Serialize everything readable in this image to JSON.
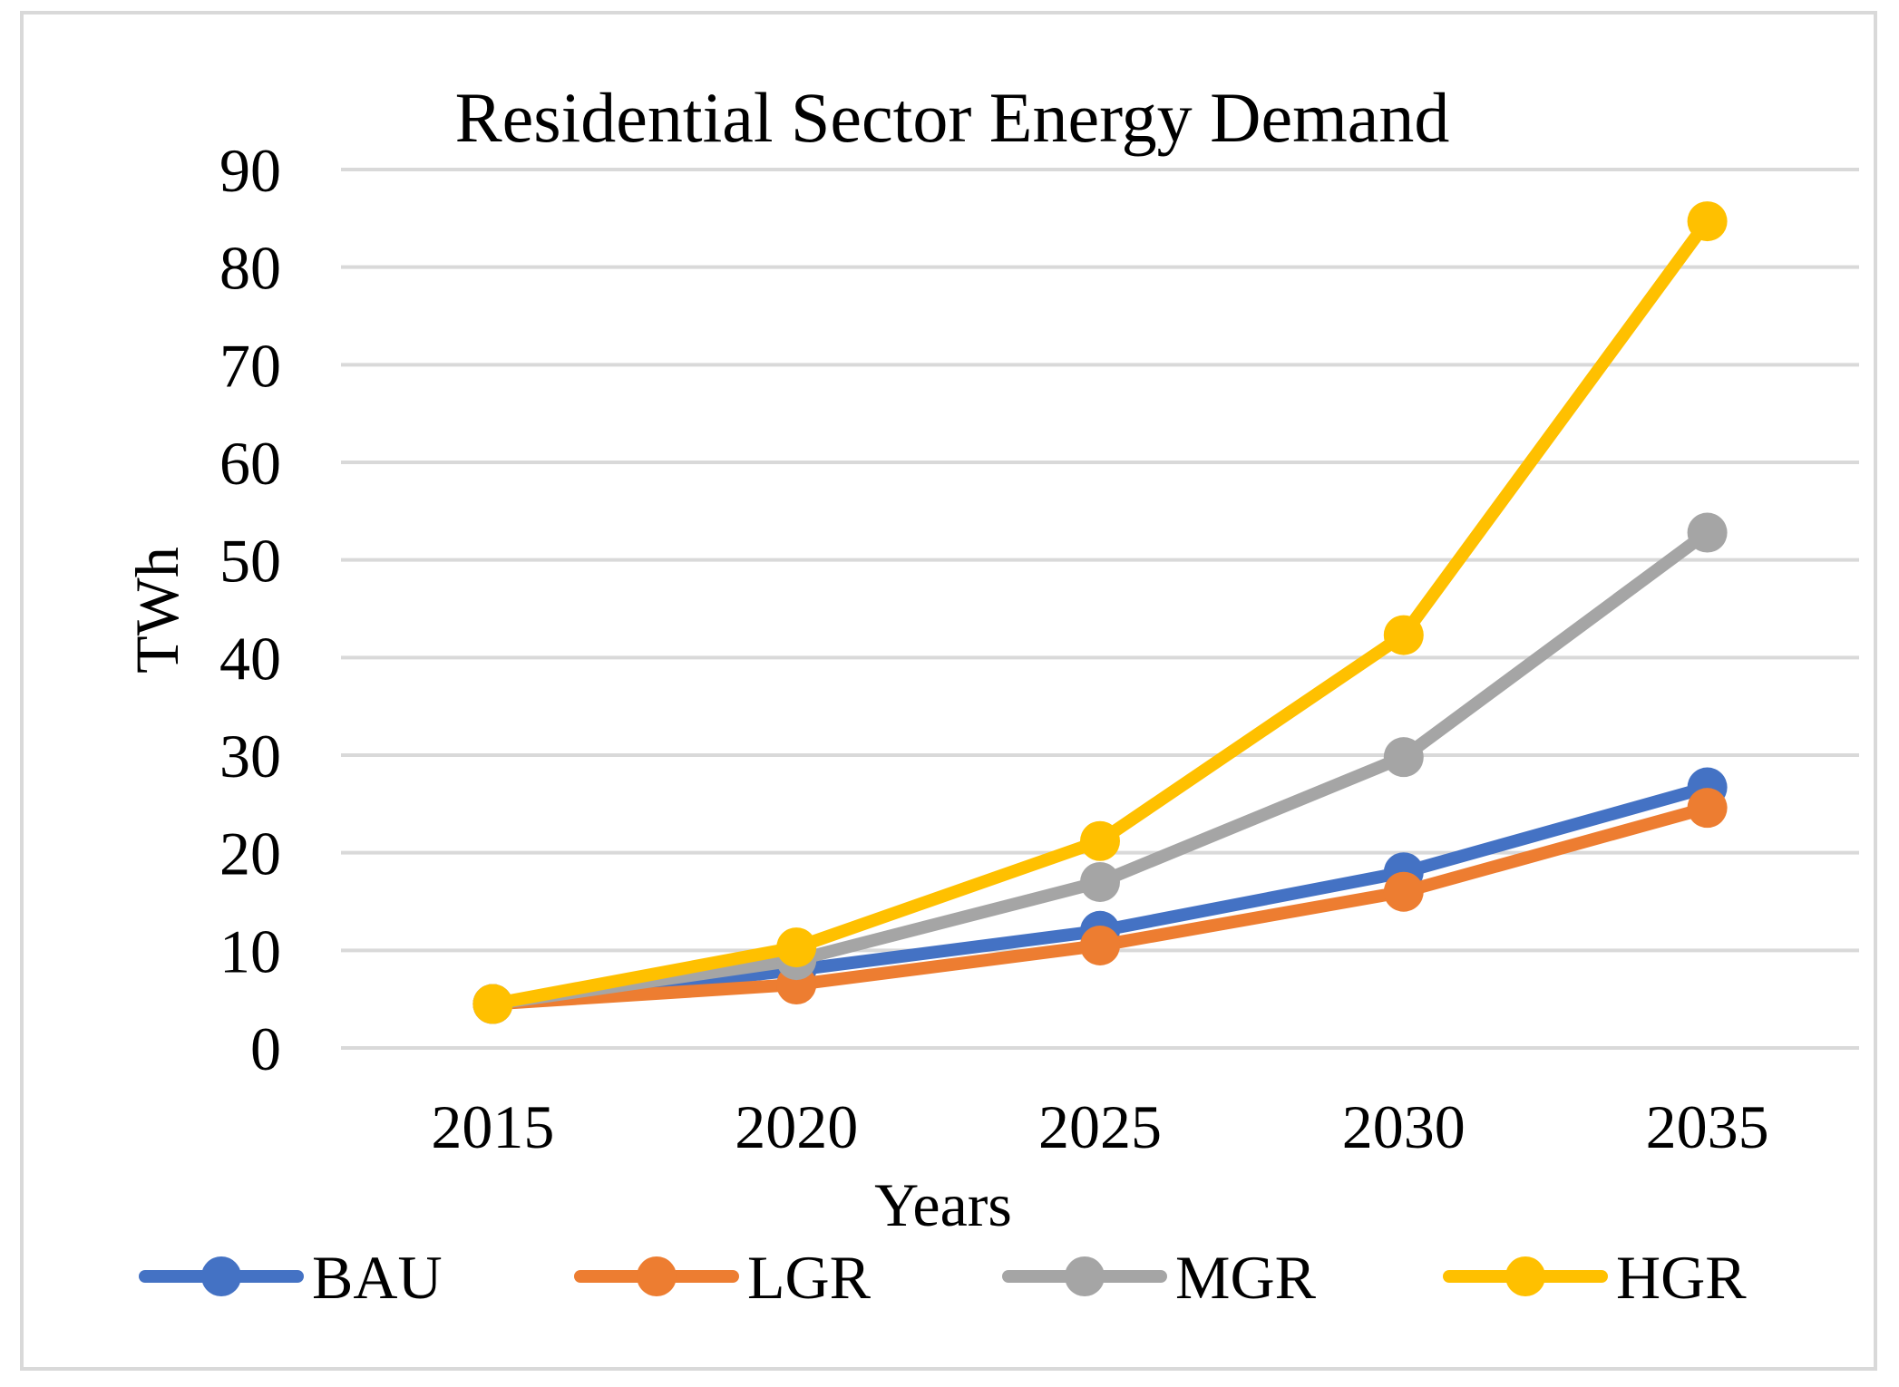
{
  "chart_data": {
    "type": "line",
    "title": "Residential Sector Energy Demand",
    "xlabel": "Years",
    "ylabel": "TWh",
    "categories": [
      "2015",
      "2020",
      "2025",
      "2030",
      "2035"
    ],
    "ylim": [
      0,
      90
    ],
    "yticks": [
      "0",
      "10",
      "20",
      "30",
      "40",
      "50",
      "60",
      "70",
      "80",
      "90"
    ],
    "grid": true,
    "legend_position": "bottom",
    "series": [
      {
        "name": "BAU",
        "color": "#4472c4",
        "values": [
          4.5,
          8.0,
          12.0,
          18.0,
          26.7
        ]
      },
      {
        "name": "LGR",
        "color": "#ed7d31",
        "values": [
          4.5,
          6.5,
          10.5,
          16.0,
          24.6
        ]
      },
      {
        "name": "MGR",
        "color": "#a5a5a5",
        "values": [
          4.5,
          9.0,
          17.0,
          29.8,
          52.8
        ]
      },
      {
        "name": "HGR",
        "color": "#ffc000",
        "values": [
          4.5,
          10.3,
          21.2,
          42.3,
          84.7
        ]
      }
    ]
  }
}
